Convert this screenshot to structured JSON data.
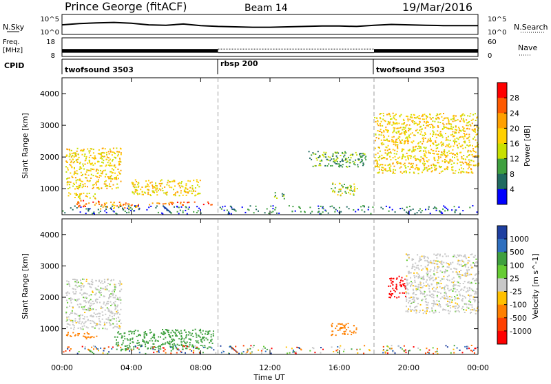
{
  "header": {
    "station": "Prince George (fitACF)",
    "beam": "Beam 14",
    "date": "19/Mar/2016"
  },
  "noise_panel": {
    "left_label": "N.Sky",
    "left_ticks": [
      "10^5",
      "10^0"
    ],
    "right_label": "N.Search",
    "right_ticks": [
      "10^5",
      "10^0"
    ]
  },
  "freq_panel": {
    "left_label_1": "Freq.",
    "left_label_2": "[MHz]",
    "left_ticks": [
      "18",
      "8"
    ],
    "right_label": "Nave",
    "right_ticks": [
      "60",
      "0"
    ]
  },
  "cpid_panel": {
    "label": "CPID",
    "modes": [
      "twofsound 3503",
      "rbsp 200",
      "twofsound 3503"
    ]
  },
  "time_axis": {
    "label": "Time UT",
    "ticks": [
      "00:00",
      "04:00",
      "08:00",
      "12:00",
      "16:00",
      "20:00",
      "00:00"
    ]
  },
  "power_colorbar": {
    "label": "Power [dB]",
    "ticks": [
      "28",
      "24",
      "20",
      "16",
      "12",
      "8",
      "4"
    ],
    "colors": [
      "#ff0000",
      "#ff5a00",
      "#ffa000",
      "#ffd000",
      "#c8e000",
      "#3fa03f",
      "#206a60",
      "#0000ff"
    ]
  },
  "velocity_colorbar": {
    "label": "Velocity [m s^-1]",
    "ticks": [
      "1000",
      "500",
      "100",
      "25",
      "-25",
      "-100",
      "-500",
      "-1000"
    ],
    "colors": [
      "#1e3fa0",
      "#2e6fbf",
      "#3fa03f",
      "#66cc33",
      "#c8c8c8",
      "#ffc000",
      "#ff8000",
      "#ff4000",
      "#ff0000"
    ]
  },
  "chart_data": [
    {
      "type": "line",
      "title": "Noise (N.Sky / N.Search)",
      "x_hours": [
        0,
        1,
        2,
        3,
        4,
        5,
        6,
        7,
        8,
        9,
        10,
        11,
        12,
        13,
        14,
        15,
        16,
        17,
        18,
        19,
        20,
        21,
        22,
        23,
        24
      ],
      "series": [
        {
          "name": "N.Sky",
          "values_log10": [
            2.4,
            2.7,
            2.9,
            3.0,
            2.8,
            2.4,
            2.3,
            2.6,
            2.2,
            2.0,
            1.9,
            1.8,
            1.8,
            1.9,
            2.0,
            2.1,
            2.1,
            2.0,
            2.3,
            2.5,
            2.4,
            2.3,
            2.2,
            2.2,
            2.2
          ]
        }
      ],
      "ylim": [
        0,
        5
      ]
    },
    {
      "type": "line",
      "title": "Frequency / Nave",
      "segments": [
        {
          "x_start": 0.0,
          "x_end": 9.0,
          "freq_range": [
            10,
            12
          ],
          "nave_state": "dense"
        },
        {
          "x_start": 9.0,
          "x_end": 18.0,
          "freq_range": [
            10,
            12
          ],
          "nave_state": "sparse"
        },
        {
          "x_start": 18.0,
          "x_end": 24.0,
          "freq_range": [
            10,
            12
          ],
          "nave_state": "dense"
        }
      ],
      "ylim": [
        8,
        18
      ]
    },
    {
      "type": "heatmap",
      "title": "Power",
      "xlabel": "Time UT",
      "ylabel": "Slant Range [km]",
      "xlim": [
        0,
        24
      ],
      "ylim": [
        180,
        4500
      ],
      "y_ticks": [
        1000,
        2000,
        3000,
        4000
      ],
      "mode_boundaries_hours": [
        9.0,
        18.0
      ],
      "echo_bands": [
        {
          "t0": 0.2,
          "t1": 2.0,
          "r0": 700,
          "r1": 900,
          "level": 16
        },
        {
          "t0": 0.8,
          "t1": 2.3,
          "r0": 450,
          "r1": 650,
          "level": 24
        },
        {
          "t0": 2.0,
          "t1": 4.5,
          "r0": 380,
          "r1": 600,
          "level": 20
        },
        {
          "t0": 5.0,
          "t1": 8.7,
          "r0": 500,
          "r1": 600,
          "level": 24
        },
        {
          "t0": 0.2,
          "t1": 3.4,
          "r0": 1000,
          "r1": 2300,
          "level": 16
        },
        {
          "t0": 4.0,
          "t1": 8.0,
          "r0": 800,
          "r1": 1300,
          "level": 16
        },
        {
          "t0": 12.2,
          "t1": 12.8,
          "r0": 700,
          "r1": 900,
          "level": 8
        },
        {
          "t0": 14.2,
          "t1": 17.5,
          "r0": 1700,
          "r1": 2200,
          "level": 8
        },
        {
          "t0": 15.5,
          "t1": 17.0,
          "r0": 800,
          "r1": 1200,
          "level": 12
        },
        {
          "t0": 18.0,
          "t1": 24.0,
          "r0": 1500,
          "r1": 3400,
          "level": 16
        }
      ]
    },
    {
      "type": "heatmap",
      "title": "Velocity",
      "xlabel": "Time UT",
      "ylabel": "Slant Range [km]",
      "xlim": [
        0,
        24
      ],
      "ylim": [
        180,
        4500
      ],
      "y_ticks": [
        1000,
        2000,
        3000,
        4000
      ],
      "mode_boundaries_hours": [
        9.0,
        18.0
      ],
      "echo_bands": [
        {
          "t0": 0.2,
          "t1": 2.0,
          "r0": 700,
          "r1": 900,
          "velocity": -100
        },
        {
          "t0": 0.2,
          "t1": 3.4,
          "r0": 1000,
          "r1": 2600,
          "velocity": 0
        },
        {
          "t0": 3.0,
          "t1": 8.7,
          "r0": 350,
          "r1": 1000,
          "velocity": 100
        },
        {
          "t0": 15.5,
          "t1": 17.0,
          "r0": 800,
          "r1": 1200,
          "velocity": -100
        },
        {
          "t0": 18.8,
          "t1": 19.8,
          "r0": 2000,
          "r1": 2700,
          "velocity": -1000
        },
        {
          "t0": 19.8,
          "t1": 24.0,
          "r0": 1500,
          "r1": 3400,
          "velocity": 0
        }
      ]
    }
  ]
}
